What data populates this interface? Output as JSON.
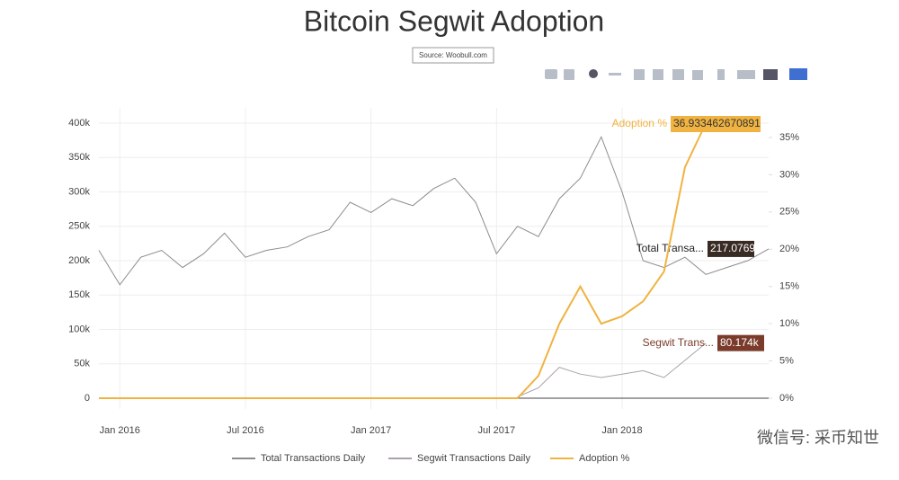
{
  "chart_data": {
    "type": "line",
    "title": "Bitcoin Segwit Adoption",
    "subtitle": "Source: Woobull.com",
    "x": [
      "2015-12",
      "2016-01",
      "2016-02",
      "2016-03",
      "2016-04",
      "2016-05",
      "2016-06",
      "2016-07",
      "2016-08",
      "2016-09",
      "2016-10",
      "2016-11",
      "2016-12",
      "2017-01",
      "2017-02",
      "2017-03",
      "2017-04",
      "2017-05",
      "2017-06",
      "2017-07",
      "2017-08",
      "2017-09",
      "2017-10",
      "2017-11",
      "2017-12",
      "2018-01",
      "2018-02",
      "2018-03",
      "2018-04",
      "2018-05",
      "2018-06",
      "2018-07",
      "2018-08"
    ],
    "xlim": [
      "2015-12",
      "2018-08"
    ],
    "xticks": [
      {
        "value": "2016-01",
        "label": "Jan 2016"
      },
      {
        "value": "2016-07",
        "label": "Jul 2016"
      },
      {
        "value": "2017-01",
        "label": "Jan 2017"
      },
      {
        "value": "2017-07",
        "label": "Jul 2017"
      },
      {
        "value": "2018-01",
        "label": "Jan 2018"
      }
    ],
    "ylim": [
      -15700,
      422200
    ],
    "yticks": [
      0,
      {
        "value": 50000,
        "label": "50k"
      },
      {
        "value": 100000,
        "label": "100k"
      },
      {
        "value": 150000,
        "label": "150k"
      },
      {
        "value": 200000,
        "label": "200k"
      },
      {
        "value": 250000,
        "label": "250k"
      },
      {
        "value": 300000,
        "label": "300k"
      },
      {
        "value": 350000,
        "label": "350k"
      },
      {
        "value": 400000,
        "label": "400k"
      }
    ],
    "y2lim": [
      -1.45,
      38.98
    ],
    "y2ticks": [
      {
        "value": 0,
        "label": "0%"
      },
      {
        "value": 5,
        "label": "5%"
      },
      {
        "value": 10,
        "label": "10%"
      },
      {
        "value": 15,
        "label": "15%"
      },
      {
        "value": 20,
        "label": "20%"
      },
      {
        "value": 25,
        "label": "25%"
      },
      {
        "value": 30,
        "label": "30%"
      },
      {
        "value": 35,
        "label": "35%"
      }
    ],
    "grid": true,
    "legend": "bottom",
    "series": [
      {
        "name": "Total Transactions Daily",
        "hover_name": "Total Transa...",
        "color": "#8e8a8e",
        "values": [
          215000,
          165000,
          205000,
          215000,
          190000,
          210000,
          240000,
          205000,
          215000,
          220000,
          235000,
          245000,
          285000,
          270000,
          290000,
          280000,
          305000,
          320000,
          285000,
          210000,
          250000,
          235000,
          290000,
          320000,
          380000,
          300000,
          200000,
          190000,
          205000,
          180000,
          190000,
          200000,
          217076.9
        ],
        "value_labels": [
          null,
          null,
          null,
          null,
          null,
          null,
          null,
          null,
          null,
          null,
          null,
          null,
          null,
          null,
          null,
          null,
          null,
          null,
          null,
          null,
          null,
          null,
          null,
          null,
          null,
          null,
          null,
          null,
          null,
          null,
          null,
          null,
          "217.0769k"
        ]
      },
      {
        "name": "Segwit Transactions Daily",
        "hover_name": "Segwit Trans...",
        "color": "#aaa2ab",
        "values": [
          null,
          null,
          null,
          null,
          null,
          null,
          null,
          null,
          null,
          null,
          null,
          null,
          null,
          null,
          null,
          null,
          null,
          null,
          null,
          null,
          2000,
          15000,
          45000,
          35000,
          30000,
          35000,
          40000,
          30000,
          55000,
          80174,
          null,
          null,
          null
        ],
        "value_labels": [
          null,
          null,
          null,
          null,
          null,
          null,
          null,
          null,
          null,
          null,
          null,
          null,
          null,
          null,
          null,
          null,
          null,
          null,
          null,
          null,
          null,
          null,
          null,
          null,
          null,
          null,
          null,
          null,
          null,
          "80.174k",
          null,
          null,
          null
        ]
      },
      {
        "name": "Adoption %",
        "color": "#f0b341",
        "axis": "y2",
        "values": [
          0,
          0,
          0,
          0,
          0,
          0,
          0,
          0,
          0,
          0,
          0,
          0,
          0,
          0,
          0,
          0,
          0,
          0,
          0,
          0,
          0,
          3,
          10,
          15,
          10,
          11,
          13,
          17,
          31,
          36.933462670891,
          null,
          null,
          null
        ]
      }
    ],
    "watermark": "微信号: 采币知世"
  }
}
